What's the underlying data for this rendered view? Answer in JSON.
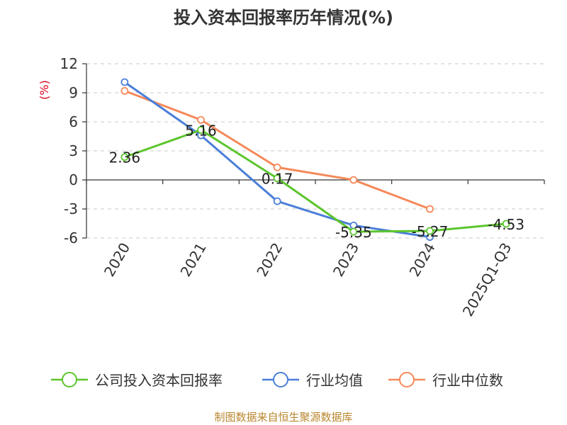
{
  "chart_data": {
    "type": "line",
    "title": "投入资本回报率历年情况(%)",
    "unit_label": "(%)",
    "categories": [
      "2020",
      "2021",
      "2022",
      "2023",
      "2024",
      "2025Q1-Q3"
    ],
    "ylim": [
      -6,
      12
    ],
    "yticks": [
      "12",
      "9",
      "6",
      "3",
      "0",
      "-3",
      "-6"
    ],
    "ytick_values": [
      12,
      9,
      6,
      3,
      0,
      -3,
      -6
    ],
    "grid": true,
    "legend_position": "bottom",
    "series": [
      {
        "name": "公司投入资本回报率",
        "color": "#5cc52d",
        "values": [
          2.36,
          5.16,
          0.17,
          -5.35,
          -5.27,
          -4.53
        ],
        "labels": [
          "2.36",
          "5.16",
          "0.17",
          "-5.35",
          "-5.27",
          "-4.53"
        ]
      },
      {
        "name": "行业均值",
        "color": "#4b7fd8",
        "values": [
          10.1,
          4.6,
          -2.2,
          -4.7,
          -5.9,
          null
        ]
      },
      {
        "name": "行业中位数",
        "color": "#f5895a",
        "values": [
          9.2,
          6.2,
          1.3,
          0.0,
          -3.0,
          null
        ]
      }
    ],
    "source": "制图数据来自恒生聚源数据库"
  }
}
